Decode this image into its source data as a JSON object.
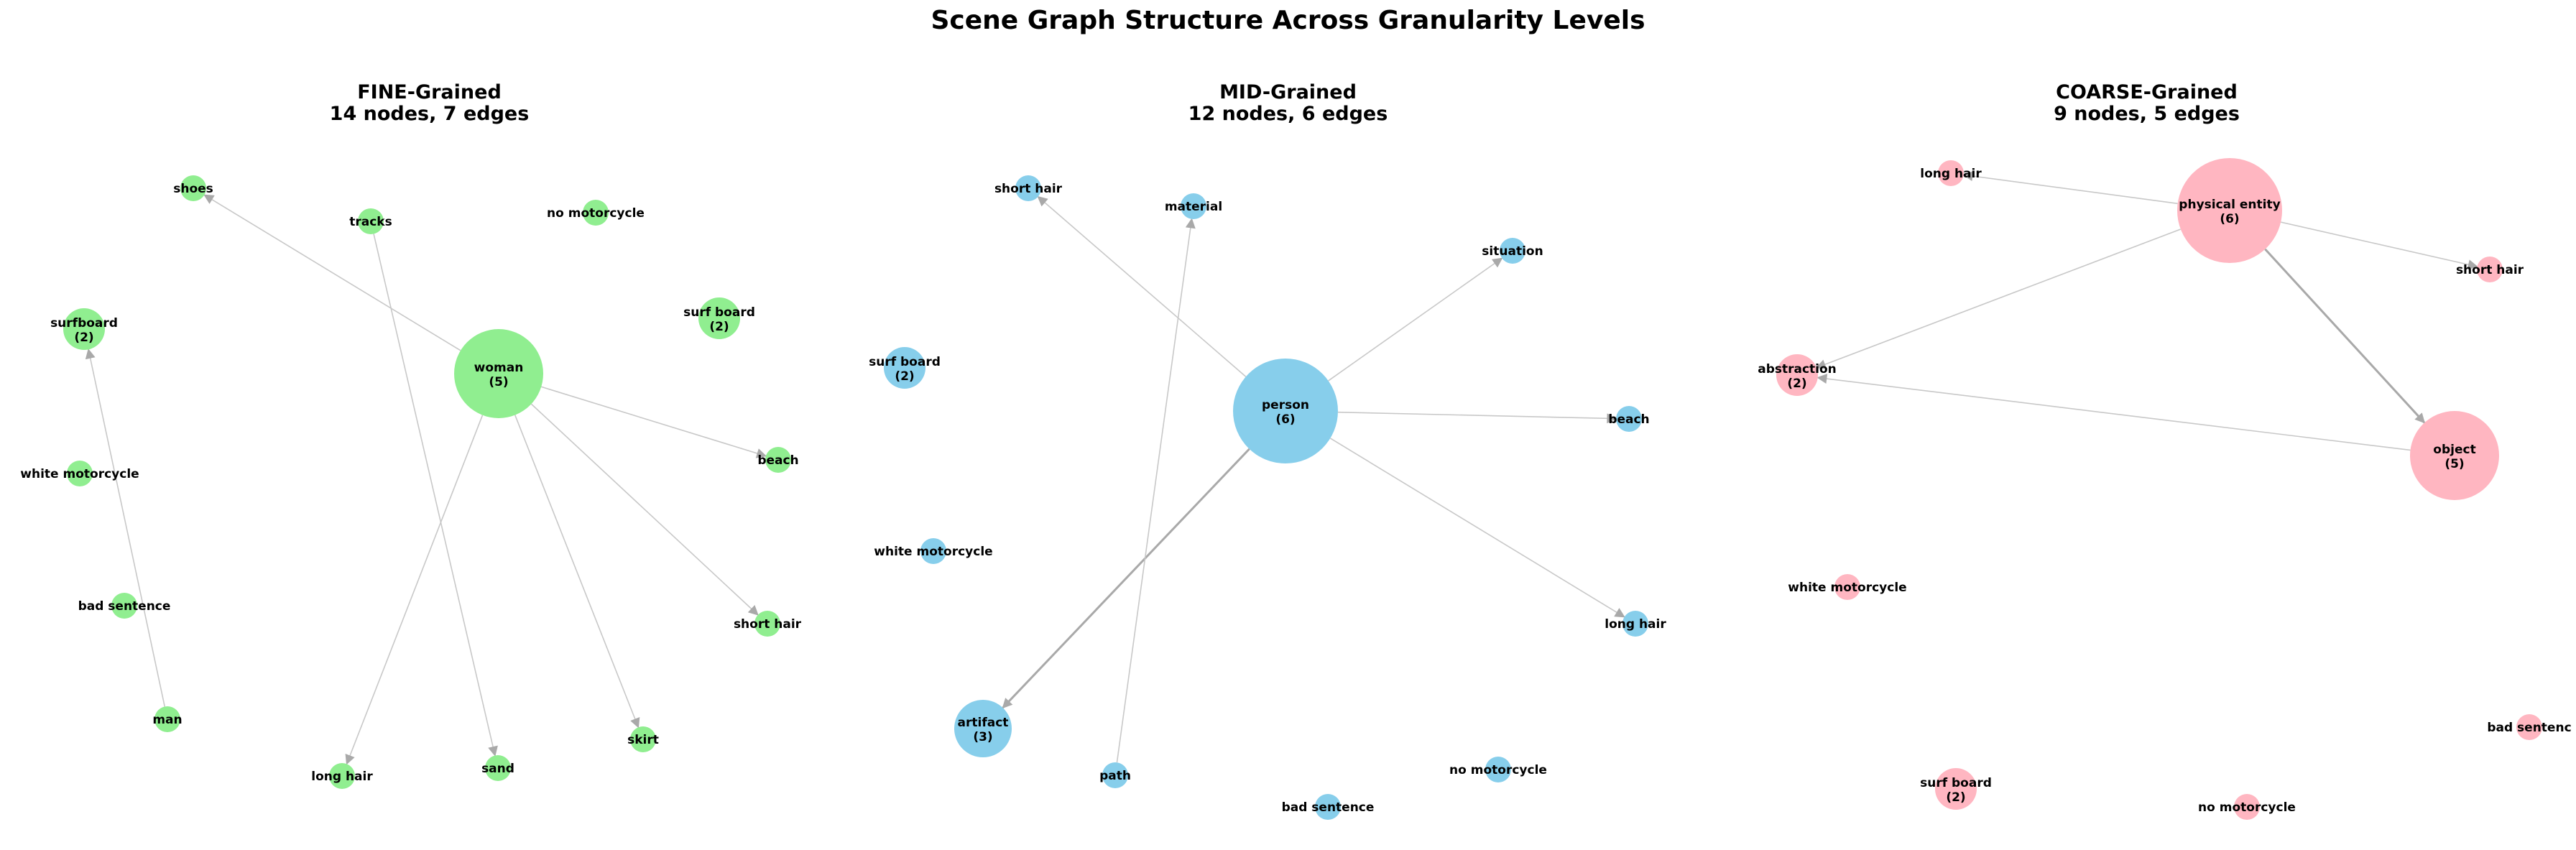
{
  "title": "Scene Graph Structure Across Granularity Levels",
  "panels": [
    {
      "title_line1": "FINE-Grained",
      "title_line2": "14 nodes, 7 edges",
      "color": "#90ee90",
      "nodes": [
        {
          "id": "shoes",
          "label": "shoes",
          "count": null
        },
        {
          "id": "tracks",
          "label": "tracks",
          "count": null
        },
        {
          "id": "no_motorcycle",
          "label": "no motorcycle",
          "count": null
        },
        {
          "id": "surfboard",
          "label": "surfboard",
          "count": 2
        },
        {
          "id": "surf_board",
          "label": "surf board",
          "count": 2
        },
        {
          "id": "woman",
          "label": "woman",
          "count": 5
        },
        {
          "id": "beach",
          "label": "beach",
          "count": null
        },
        {
          "id": "white_motorcycle",
          "label": "white motorcycle",
          "count": null
        },
        {
          "id": "bad_sentence",
          "label": "bad sentence",
          "count": null
        },
        {
          "id": "short_hair",
          "label": "short hair",
          "count": null
        },
        {
          "id": "man",
          "label": "man",
          "count": null
        },
        {
          "id": "skirt",
          "label": "skirt",
          "count": null
        },
        {
          "id": "sand",
          "label": "sand",
          "count": null
        },
        {
          "id": "long_hair",
          "label": "long hair",
          "count": null
        }
      ],
      "edges": [
        {
          "from": "woman",
          "to": "shoes"
        },
        {
          "from": "woman",
          "to": "beach"
        },
        {
          "from": "woman",
          "to": "short_hair"
        },
        {
          "from": "woman",
          "to": "skirt"
        },
        {
          "from": "woman",
          "to": "long_hair"
        },
        {
          "from": "tracks",
          "to": "sand"
        },
        {
          "from": "man",
          "to": "surfboard"
        }
      ]
    },
    {
      "title_line1": "MID-Grained",
      "title_line2": "12 nodes, 6 edges",
      "color": "#87ceeb",
      "nodes": [
        {
          "id": "short_hair",
          "label": "short hair",
          "count": null
        },
        {
          "id": "material",
          "label": "material",
          "count": null
        },
        {
          "id": "situation",
          "label": "situation",
          "count": null
        },
        {
          "id": "surf_board",
          "label": "surf board",
          "count": 2
        },
        {
          "id": "person",
          "label": "person",
          "count": 6
        },
        {
          "id": "beach",
          "label": "beach",
          "count": null
        },
        {
          "id": "white_motorcycle",
          "label": "white motorcycle",
          "count": null
        },
        {
          "id": "long_hair",
          "label": "long hair",
          "count": null
        },
        {
          "id": "artifact",
          "label": "artifact",
          "count": 3
        },
        {
          "id": "no_motorcycle",
          "label": "no motorcycle",
          "count": null
        },
        {
          "id": "path",
          "label": "path",
          "count": null
        },
        {
          "id": "bad_sentence",
          "label": "bad sentence",
          "count": null
        }
      ],
      "edges": [
        {
          "from": "person",
          "to": "short_hair"
        },
        {
          "from": "person",
          "to": "situation"
        },
        {
          "from": "person",
          "to": "beach"
        },
        {
          "from": "person",
          "to": "long_hair"
        },
        {
          "from": "person",
          "to": "artifact"
        },
        {
          "from": "path",
          "to": "material"
        }
      ]
    },
    {
      "title_line1": "COARSE-Grained",
      "title_line2": "9 nodes, 5 edges",
      "color": "#ffb6c1",
      "nodes": [
        {
          "id": "long_hair",
          "label": "long hair",
          "count": null
        },
        {
          "id": "physical_entity",
          "label": "physical entity",
          "count": 6
        },
        {
          "id": "short_hair",
          "label": "short hair",
          "count": null
        },
        {
          "id": "abstraction",
          "label": "abstraction",
          "count": 2
        },
        {
          "id": "object",
          "label": "object",
          "count": 5
        },
        {
          "id": "white_motorcycle",
          "label": "white motorcycle",
          "count": null
        },
        {
          "id": "bad_sentence",
          "label": "bad sentenc",
          "count": null
        },
        {
          "id": "surf_board",
          "label": "surf board",
          "count": 2
        },
        {
          "id": "no_motorcycle",
          "label": "no motorcycle",
          "count": null
        }
      ],
      "edges": [
        {
          "from": "physical_entity",
          "to": "long_hair"
        },
        {
          "from": "physical_entity",
          "to": "short_hair"
        },
        {
          "from": "physical_entity",
          "to": "abstraction"
        },
        {
          "from": "physical_entity",
          "to": "object"
        },
        {
          "from": "object",
          "to": "abstraction"
        }
      ]
    }
  ]
}
